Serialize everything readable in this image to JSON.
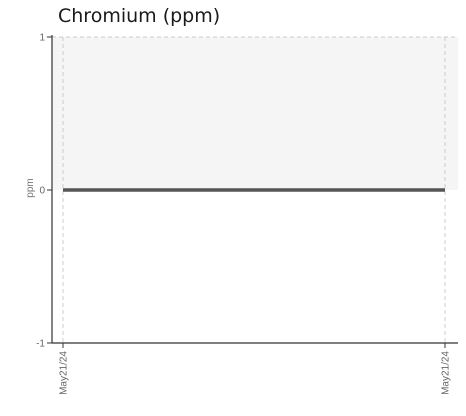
{
  "chart_data": {
    "type": "line",
    "title": "Chromium (ppm)",
    "ylabel": "ppm",
    "xlabel": "",
    "ylim": [
      -1,
      1
    ],
    "y_ticks": [
      "1",
      "0",
      "-1"
    ],
    "x": [
      "May21/24",
      "May21/24"
    ],
    "series": [
      {
        "values": [
          0,
          0
        ]
      }
    ],
    "shaded_band": [
      0,
      1
    ],
    "grid": true,
    "colors": {
      "line": "#555555",
      "band": "#f5f5f5",
      "axis": "#333333",
      "grid": "#cccccc"
    }
  }
}
